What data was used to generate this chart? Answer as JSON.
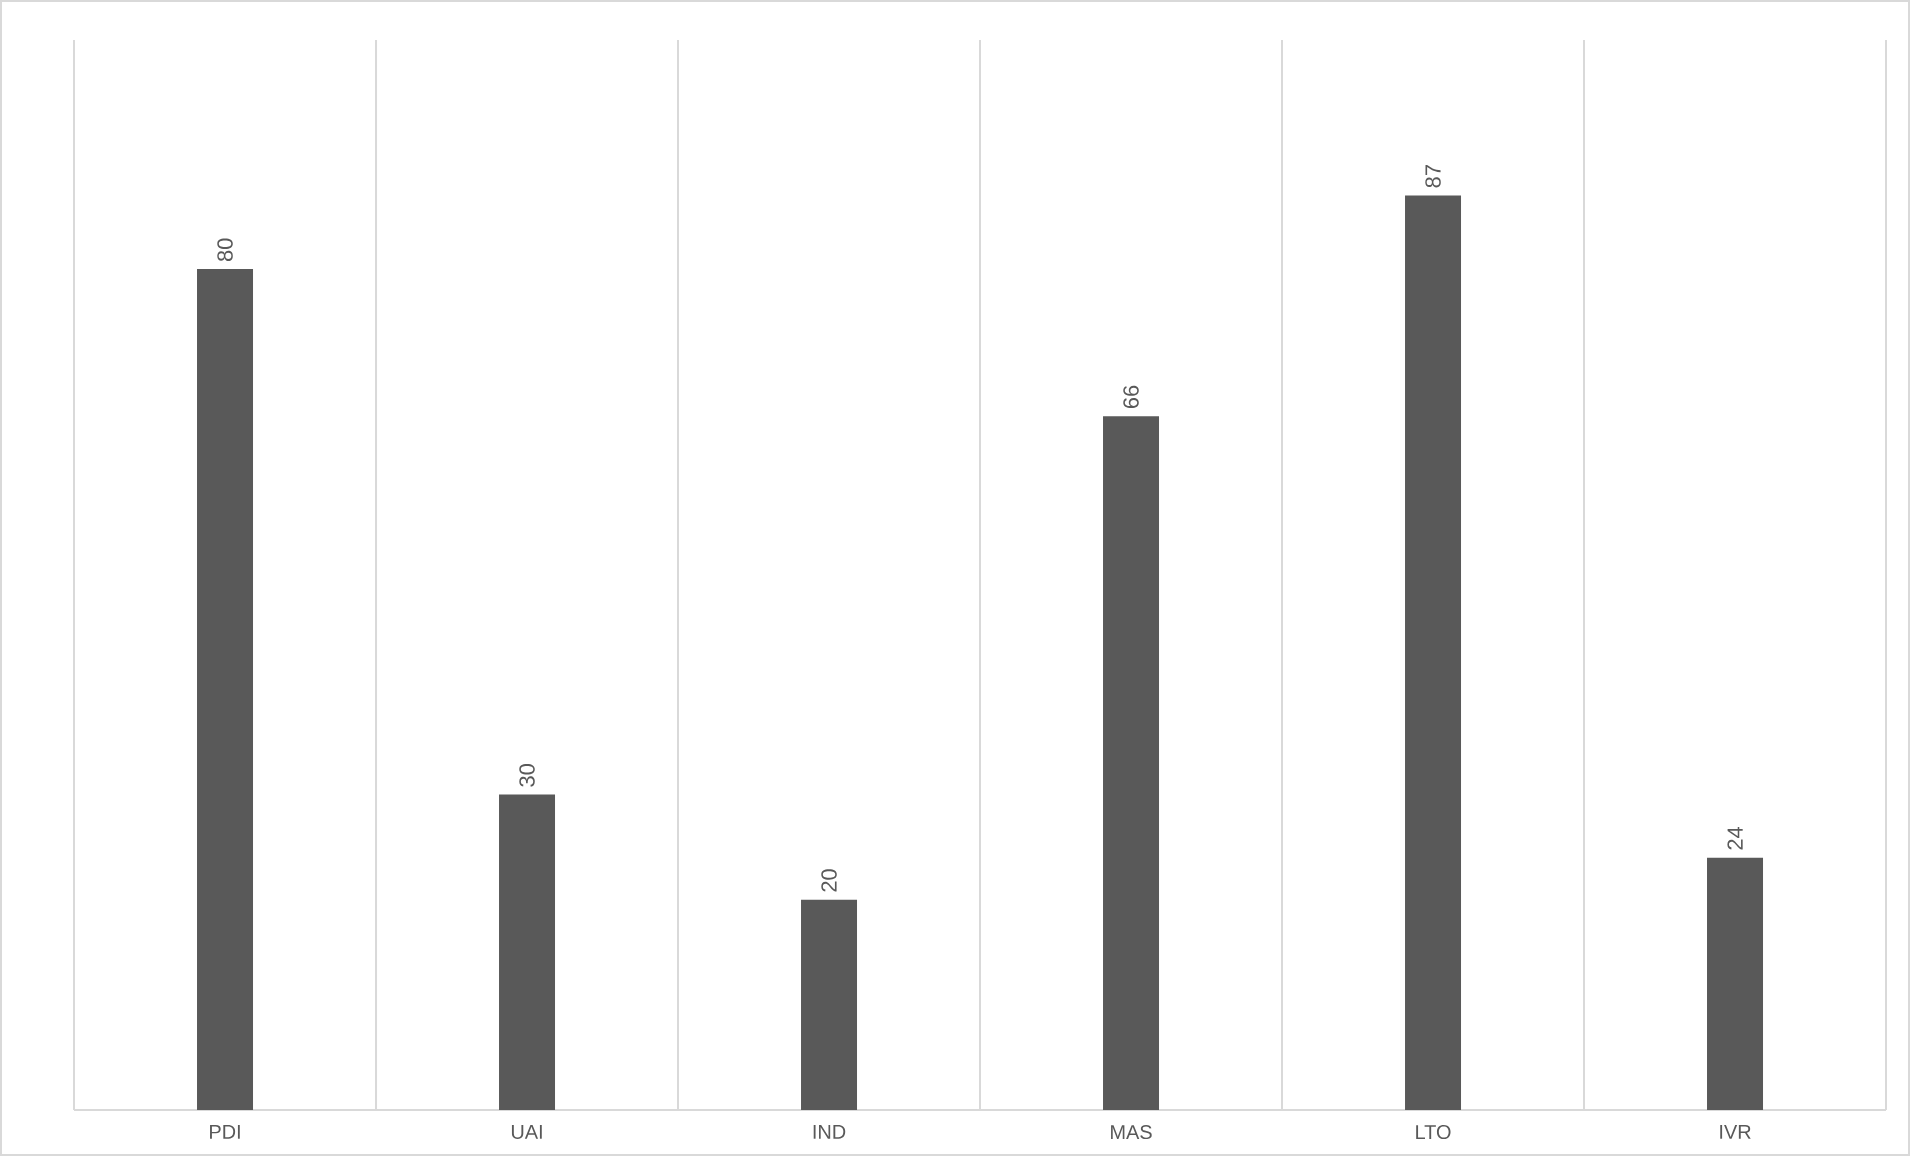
{
  "chart_data": {
    "type": "bar",
    "categories": [
      "PDI",
      "UAI",
      "IND",
      "MAS",
      "LTO",
      "IVR"
    ],
    "values": [
      80,
      30,
      20,
      66,
      87,
      24
    ],
    "color": "#595959",
    "data_labels": true,
    "grid": "x"
  }
}
